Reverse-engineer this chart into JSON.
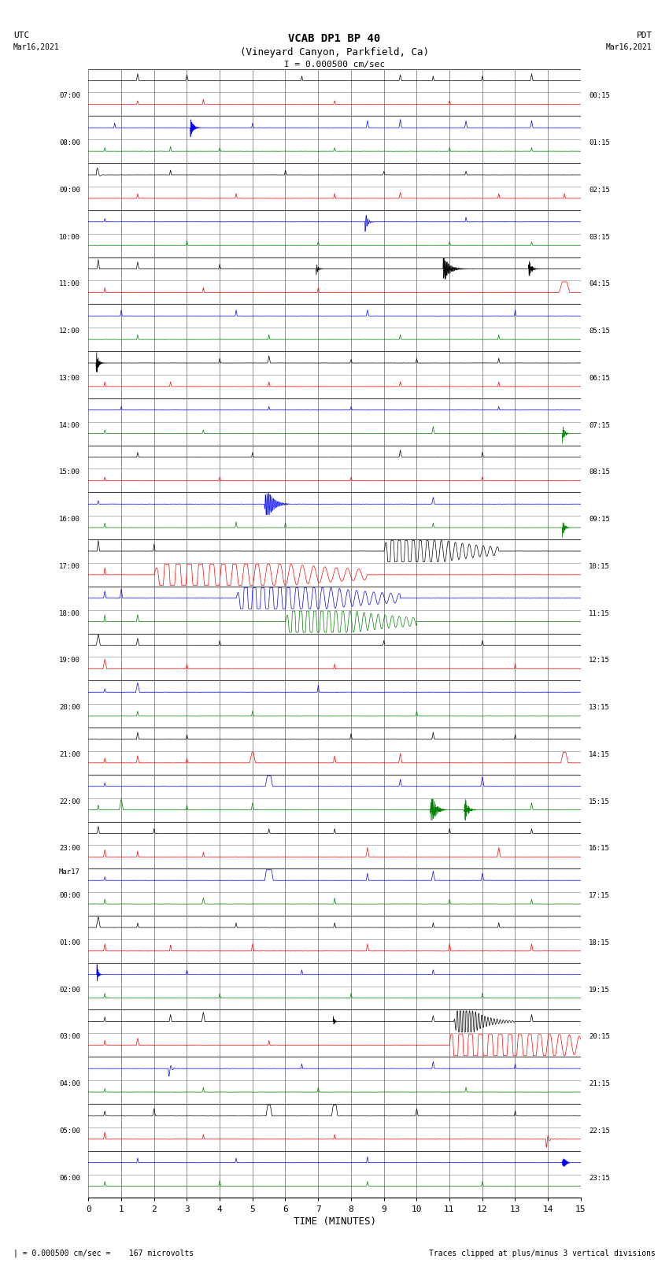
{
  "title_line1": "VCAB DP1 BP 40",
  "title_line2": "(Vineyard Canyon, Parkfield, Ca)",
  "scale_label": "I = 0.000500 cm/sec",
  "xlabel": "TIME (MINUTES)",
  "footer_left": "| = 0.000500 cm/sec =    167 microvolts",
  "footer_right": "Traces clipped at plus/minus 3 vertical divisions",
  "xlim": [
    0,
    15
  ],
  "xticks": [
    0,
    1,
    2,
    3,
    4,
    5,
    6,
    7,
    8,
    9,
    10,
    11,
    12,
    13,
    14,
    15
  ],
  "num_rows": 48,
  "background_color": "#ffffff",
  "grid_color": "#888888",
  "utc_times": [
    "07:00",
    "",
    "08:00",
    "",
    "09:00",
    "",
    "10:00",
    "",
    "11:00",
    "",
    "12:00",
    "",
    "13:00",
    "",
    "14:00",
    "",
    "15:00",
    "",
    "16:00",
    "",
    "17:00",
    "",
    "18:00",
    "",
    "19:00",
    "",
    "20:00",
    "",
    "21:00",
    "",
    "22:00",
    "",
    "23:00",
    "Mar17",
    "00:00",
    "",
    "01:00",
    "",
    "02:00",
    "",
    "03:00",
    "",
    "04:00",
    "",
    "05:00",
    "",
    "06:00",
    ""
  ],
  "pdt_times": [
    "00:15",
    "",
    "01:15",
    "",
    "02:15",
    "",
    "03:15",
    "",
    "04:15",
    "",
    "05:15",
    "",
    "06:15",
    "",
    "07:15",
    "",
    "08:15",
    "",
    "09:15",
    "",
    "10:15",
    "",
    "11:15",
    "",
    "12:15",
    "",
    "13:15",
    "",
    "14:15",
    "",
    "15:15",
    "",
    "16:15",
    "",
    "17:15",
    "",
    "18:15",
    "",
    "19:15",
    "",
    "20:15",
    "",
    "21:15",
    "",
    "22:15",
    "",
    "23:15",
    ""
  ]
}
